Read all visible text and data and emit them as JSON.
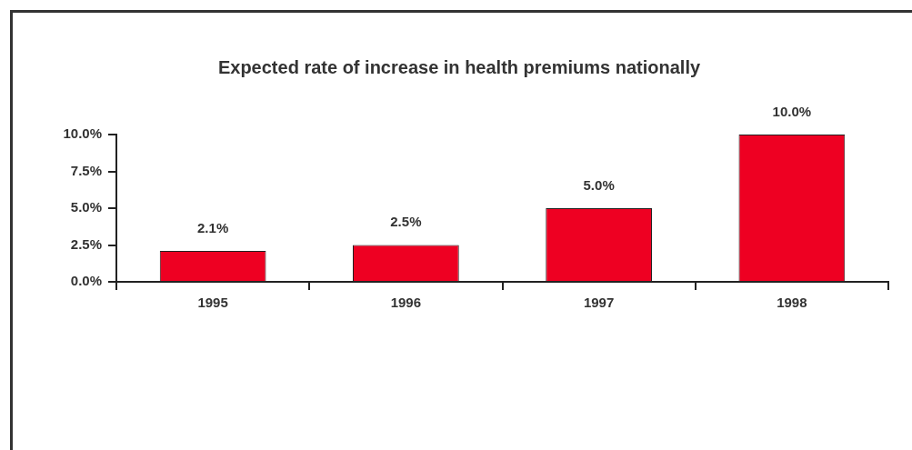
{
  "chart_data": {
    "type": "bar",
    "title": "Expected rate of increase in health premiums nationally",
    "categories": [
      "1995",
      "1996",
      "1997",
      "1998"
    ],
    "values": [
      2.1,
      2.5,
      5.0,
      10.0
    ],
    "value_labels": [
      "2.1%",
      "2.5%",
      "5.0%",
      "10.0%"
    ],
    "color": "#ee0022",
    "ylim": [
      0,
      10
    ],
    "yticks": [
      {
        "value": 0,
        "label": "0.0%"
      },
      {
        "value": 2.5,
        "label": "2.5%"
      },
      {
        "value": 5,
        "label": "5.0%"
      },
      {
        "value": 7.5,
        "label": "7.5%"
      },
      {
        "value": 10,
        "label": "10.0%"
      }
    ]
  }
}
